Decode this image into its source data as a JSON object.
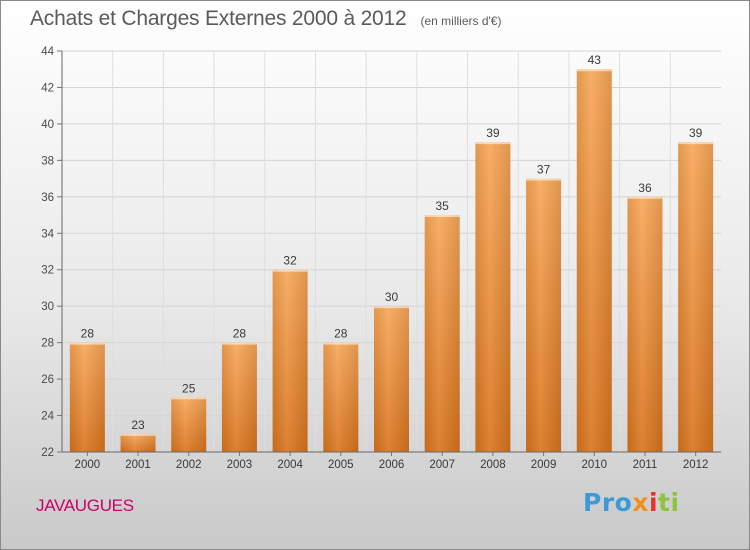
{
  "title": "Achats et Charges Externes 2000 à 2012",
  "subtitle": "(en milliers d'€)",
  "commune": "JAVAUGUES",
  "logo": {
    "part1": "Pro",
    "part2": "x",
    "part3": "i",
    "part4": "ti"
  },
  "colors": {
    "bar_top": "#f7a656",
    "bar_bottom": "#d8731c",
    "commune_text": "#cc0066"
  },
  "chart_data": {
    "type": "bar",
    "title": "Achats et Charges Externes 2000 à 2012",
    "subtitle": "(en milliers d'€)",
    "categories": [
      "2000",
      "2001",
      "2002",
      "2003",
      "2004",
      "2005",
      "2006",
      "2007",
      "2008",
      "2009",
      "2010",
      "2011",
      "2012"
    ],
    "values": [
      28,
      23,
      25,
      28,
      32,
      28,
      30,
      35,
      39,
      37,
      43,
      36,
      39
    ],
    "ylim": [
      22,
      44
    ],
    "yticks": [
      22,
      24,
      26,
      28,
      30,
      32,
      34,
      36,
      38,
      40,
      42,
      44
    ],
    "grid": true,
    "data_labels": true
  }
}
